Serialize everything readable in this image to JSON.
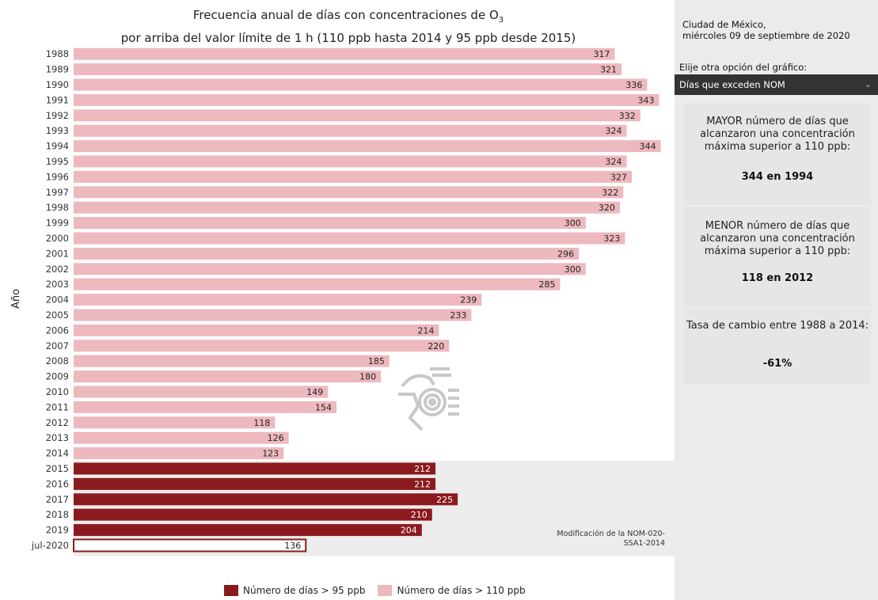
{
  "title_line1": "Frecuencia anual de días con concentraciones de O",
  "title_sub": "3",
  "title_line2": "por arriba del valor límite de 1 h (110 ppb hasta 2014 y 95 ppb desde 2015)",
  "side": {
    "city": "Ciudad de México,",
    "date": "miércoles 09 de septiembre de 2020",
    "select_label": "Elije otra opción del gráfico:",
    "select_value": "Días que exceden NOM",
    "max_text": "MAYOR número de días que alcanzaron una concentración máxima superior a 110 ppb:",
    "max_value": "344 en 1994",
    "min_text": "MENOR número de días que alcanzaron una concentración máxima superior a 110 ppb:",
    "min_value": "118 en 2012",
    "rate_text": "Tasa de cambio entre 1988 a 2014:",
    "rate_value": "-61%"
  },
  "note": "Modificación de la NOM-020-SSA1-2014",
  "chart_data": {
    "type": "bar",
    "orientation": "horizontal",
    "ylabel": "Año",
    "categories": [
      "1988",
      "1989",
      "1990",
      "1991",
      "1992",
      "1993",
      "1994",
      "1995",
      "1996",
      "1997",
      "1998",
      "1999",
      "2000",
      "2001",
      "2002",
      "2003",
      "2004",
      "2005",
      "2006",
      "2007",
      "2008",
      "2009",
      "2010",
      "2011",
      "2012",
      "2013",
      "2014",
      "2015",
      "2016",
      "2017",
      "2018",
      "2019",
      "jul-2020"
    ],
    "values": [
      317,
      321,
      336,
      343,
      332,
      324,
      344,
      324,
      327,
      322,
      320,
      300,
      323,
      296,
      300,
      285,
      239,
      233,
      214,
      220,
      185,
      180,
      149,
      154,
      118,
      126,
      123,
      212,
      212,
      225,
      210,
      204,
      136
    ],
    "series": [
      {
        "name": "Número de días > 95 ppb",
        "color": "#8b1a1f",
        "categories": [
          "2015",
          "2016",
          "2017",
          "2018",
          "2019",
          "jul-2020"
        ]
      },
      {
        "name": "Número de días > 110 ppb",
        "color": "#edb8be",
        "categories": [
          "1988",
          "1989",
          "1990",
          "1991",
          "1992",
          "1993",
          "1994",
          "1995",
          "1996",
          "1997",
          "1998",
          "1999",
          "2000",
          "2001",
          "2002",
          "2003",
          "2004",
          "2005",
          "2006",
          "2007",
          "2008",
          "2009",
          "2010",
          "2011",
          "2012",
          "2013",
          "2014"
        ]
      }
    ],
    "xlim": [
      0,
      350
    ],
    "legend_position": "bottom"
  }
}
